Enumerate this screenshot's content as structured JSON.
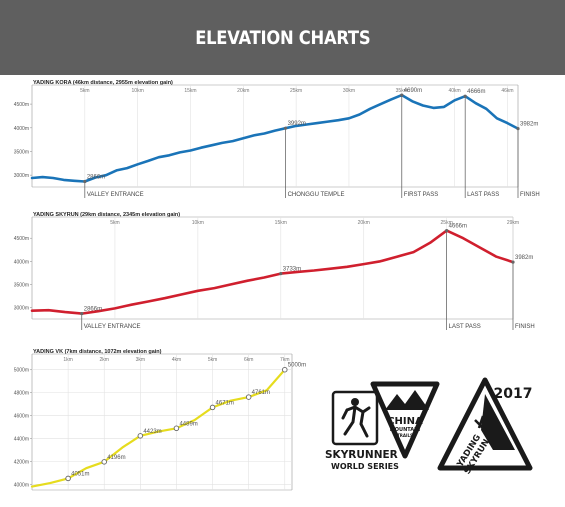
{
  "header": {
    "title": "ELEVATION CHARTS"
  },
  "chart_data": [
    {
      "type": "line",
      "title": "YADING KORA (46km distance, 2955m elevation gain)",
      "x_ticks": [
        5,
        10,
        15,
        20,
        25,
        30,
        35,
        40,
        45
      ],
      "x_tick_labels": [
        "5km",
        "10km",
        "15km",
        "20km",
        "25km",
        "30km",
        "35km",
        "40km",
        "46km"
      ],
      "xlim": [
        0,
        46
      ],
      "y_ticks": [
        3000,
        3500,
        4000,
        4500
      ],
      "y_tick_labels": [
        "3000m",
        "3500m",
        "4000m",
        "4500m"
      ],
      "ylim": [
        2750,
        4650
      ],
      "color": "#1a74b8",
      "x": [
        0,
        1,
        2,
        3,
        4,
        5,
        6,
        7,
        8,
        9,
        10,
        11,
        12,
        13,
        14,
        15,
        16,
        17,
        18,
        19,
        20,
        21,
        22,
        23,
        24,
        25,
        26,
        27,
        28,
        29,
        30,
        31,
        32,
        33,
        34,
        35,
        36,
        37,
        38,
        39,
        40,
        41,
        42,
        43,
        44,
        45,
        46
      ],
      "y": [
        2940,
        2960,
        2940,
        2900,
        2880,
        2866,
        2950,
        3000,
        3100,
        3150,
        3230,
        3300,
        3380,
        3420,
        3480,
        3520,
        3580,
        3630,
        3680,
        3720,
        3780,
        3840,
        3880,
        3940,
        3992,
        4040,
        4070,
        4100,
        4130,
        4160,
        4200,
        4280,
        4400,
        4500,
        4600,
        4690,
        4560,
        4470,
        4420,
        4440,
        4580,
        4666,
        4520,
        4400,
        4200,
        4100,
        3982
      ],
      "data_labels": [
        {
          "x": 5,
          "y": 2866,
          "text": "2866m"
        },
        {
          "x": 24,
          "y": 3992,
          "text": "3992m"
        },
        {
          "x": 35,
          "y": 4690,
          "text": "4690m"
        },
        {
          "x": 41,
          "y": 4666,
          "text": "4666m"
        },
        {
          "x": 46,
          "y": 3982,
          "text": "3982m"
        }
      ],
      "markers": [
        {
          "x": 5,
          "label": "VALLEY ENTRANCE"
        },
        {
          "x": 24,
          "label": "CHONGGU TEMPLE"
        },
        {
          "x": 35,
          "label": "FIRST PASS"
        },
        {
          "x": 41,
          "label": "LAST PASS"
        },
        {
          "x": 46,
          "label": "FINISH"
        }
      ],
      "grid": "vertical"
    },
    {
      "type": "line",
      "title": "YADING SKYRUN (29km distance, 2345m elevation gain)",
      "x_ticks": [
        5,
        10,
        15,
        20,
        25,
        29
      ],
      "x_tick_labels": [
        "5km",
        "10km",
        "15km",
        "20km",
        "25km",
        "29km"
      ],
      "xlim": [
        0,
        29
      ],
      "y_ticks": [
        3000,
        3500,
        4000,
        4500
      ],
      "y_tick_labels": [
        "3000m",
        "3500m",
        "4000m",
        "4500m"
      ],
      "ylim": [
        2750,
        4700
      ],
      "color": "#d01f2e",
      "x": [
        0,
        1,
        2,
        3,
        4,
        5,
        6,
        7,
        8,
        9,
        10,
        11,
        12,
        13,
        14,
        15,
        16,
        17,
        18,
        19,
        20,
        21,
        22,
        23,
        24,
        25,
        26,
        27,
        28,
        29
      ],
      "y": [
        2930,
        2940,
        2900,
        2866,
        2920,
        2980,
        3060,
        3130,
        3200,
        3280,
        3360,
        3420,
        3500,
        3580,
        3650,
        3733,
        3770,
        3800,
        3840,
        3880,
        3940,
        4000,
        4100,
        4200,
        4400,
        4666,
        4500,
        4300,
        4100,
        3982
      ],
      "data_labels": [
        {
          "x": 3,
          "y": 2866,
          "text": "2866m"
        },
        {
          "x": 15,
          "y": 3733,
          "text": "3733m"
        },
        {
          "x": 25,
          "y": 4666,
          "text": "4666m"
        },
        {
          "x": 29,
          "y": 3982,
          "text": "3982m"
        }
      ],
      "markers": [
        {
          "x": 3,
          "label": "VALLEY ENTRANCE"
        },
        {
          "x": 25,
          "label": "LAST PASS"
        },
        {
          "x": 29,
          "label": "FINISH"
        }
      ],
      "grid": "vertical"
    },
    {
      "type": "line",
      "title": "YADING VK (7km distance, 1072m elevation gain)",
      "x_ticks": [
        1,
        2,
        3,
        4,
        5,
        6,
        7
      ],
      "x_tick_labels": [
        "1km",
        "2km",
        "3km",
        "4km",
        "5km",
        "6km",
        "7km"
      ],
      "xlim": [
        0,
        7.2
      ],
      "y_ticks": [
        4000,
        4200,
        4400,
        4600,
        4800,
        5000
      ],
      "y_tick_labels": [
        "4000m",
        "4200m",
        "4400m",
        "4600m",
        "4800m",
        "5000m"
      ],
      "ylim": [
        3950,
        5050
      ],
      "color": "#e6dc1e",
      "x": [
        0,
        0.5,
        1,
        1.5,
        2,
        2.5,
        3,
        3.5,
        4,
        4.5,
        5,
        5.5,
        6,
        6.5,
        7
      ],
      "y": [
        3980,
        4010,
        4051,
        4140,
        4196,
        4320,
        4423,
        4460,
        4489,
        4560,
        4671,
        4730,
        4761,
        4820,
        5000
      ],
      "points": [
        {
          "x": 1,
          "y": 4051,
          "text": "4051m"
        },
        {
          "x": 2,
          "y": 4196,
          "text": "4196m"
        },
        {
          "x": 3,
          "y": 4423,
          "text": "4423m"
        },
        {
          "x": 4,
          "y": 4489,
          "text": "4489m"
        },
        {
          "x": 5,
          "y": 4671,
          "text": "4671m"
        },
        {
          "x": 6,
          "y": 4761,
          "text": "4761m"
        },
        {
          "x": 7,
          "y": 5000,
          "text": "5000m"
        }
      ],
      "grid": "both"
    }
  ],
  "logos": {
    "brand": "SKYRUNNER",
    "brand_mark": "®",
    "series": "WORLD SERIES",
    "year": "2017",
    "china_line1": "CHINA",
    "china_line2": "MOUNTAIN",
    "china_line3": "TRAILS",
    "yading_line1": "YADING",
    "yading_line2": "SKYRUN"
  }
}
